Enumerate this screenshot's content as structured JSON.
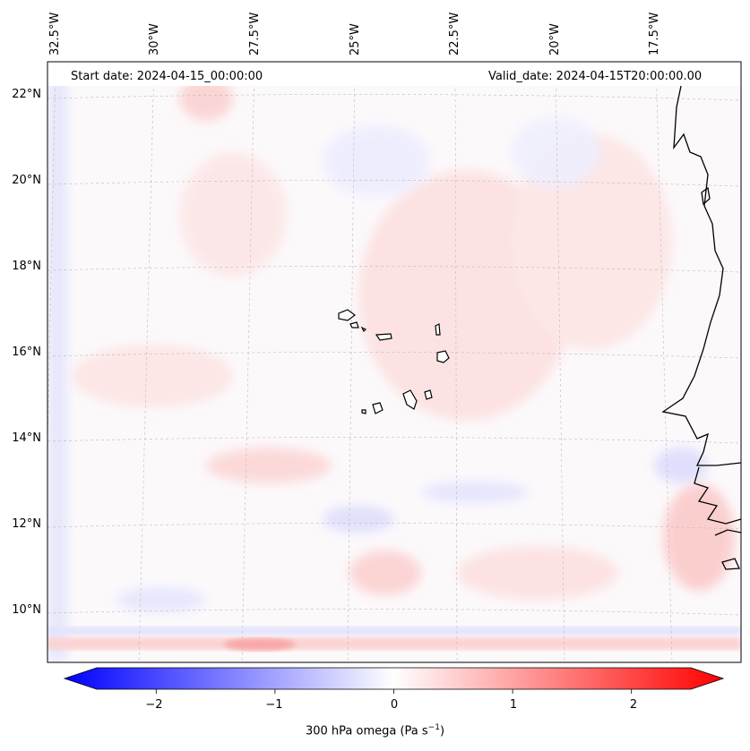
{
  "map": {
    "start_date_text": "Start date: 2024-04-15_00:00:00",
    "valid_date_text": "Valid_date: 2024-04-15T20:00:00.00",
    "lon_labels": [
      "32.5°W",
      "30°W",
      "27.5°W",
      "25°W",
      "22.5°W",
      "20°W",
      "17.5°W"
    ],
    "lat_labels": [
      "22°N",
      "20°N",
      "18°N",
      "16°N",
      "14°N",
      "12°N",
      "10°N"
    ],
    "field_colors": {
      "negative": "#0000ff",
      "neutral": "#ffffff",
      "positive": "#ff0000",
      "coast": "#000000",
      "grid": "#bbbbbb"
    }
  },
  "colorbar": {
    "ticks": [
      "−2",
      "−1",
      "0",
      "1",
      "2"
    ],
    "tick_values": [
      -2,
      -1,
      0,
      1,
      2
    ],
    "range": [
      -2.5,
      2.5
    ],
    "label_main": "300 hPa omega (Pa s",
    "label_sup": "−1",
    "label_end": ")"
  }
}
